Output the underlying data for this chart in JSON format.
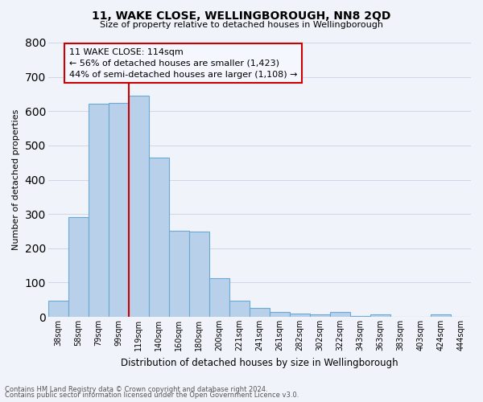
{
  "title": "11, WAKE CLOSE, WELLINGBOROUGH, NN8 2QD",
  "subtitle": "Size of property relative to detached houses in Wellingborough",
  "xlabel": "Distribution of detached houses by size in Wellingborough",
  "ylabel": "Number of detached properties",
  "bar_labels": [
    "38sqm",
    "58sqm",
    "79sqm",
    "99sqm",
    "119sqm",
    "140sqm",
    "160sqm",
    "180sqm",
    "200sqm",
    "221sqm",
    "241sqm",
    "261sqm",
    "282sqm",
    "302sqm",
    "322sqm",
    "343sqm",
    "363sqm",
    "383sqm",
    "403sqm",
    "424sqm",
    "444sqm"
  ],
  "bar_values": [
    47,
    290,
    622,
    625,
    645,
    465,
    250,
    248,
    112,
    47,
    25,
    15,
    10,
    8,
    15,
    3,
    8,
    0,
    0,
    8,
    0
  ],
  "bar_color": "#b8d0ea",
  "bar_edge_color": "#6aaad4",
  "vline_x": 4,
  "vline_color": "#cc0000",
  "annotation_text": "11 WAKE CLOSE: 114sqm\n← 56% of detached houses are smaller (1,423)\n44% of semi-detached houses are larger (1,108) →",
  "annotation_box_color": "#cc0000",
  "annotation_box_facecolor": "#f5f7ff",
  "ylim": [
    0,
    800
  ],
  "yticks": [
    0,
    100,
    200,
    300,
    400,
    500,
    600,
    700,
    800
  ],
  "footnote1": "Contains HM Land Registry data © Crown copyright and database right 2024.",
  "footnote2": "Contains public sector information licensed under the Open Government Licence v3.0.",
  "bg_color": "#f0f4fa",
  "grid_color": "#d0d8e8"
}
